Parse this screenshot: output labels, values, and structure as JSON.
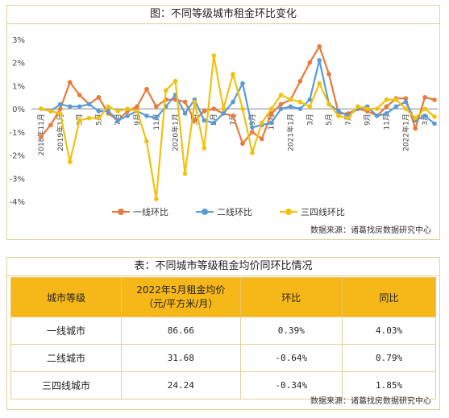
{
  "chart_data": {
    "type": "line",
    "title": "图：不同等级城市租金环比变化",
    "ylim": [
      -4,
      3
    ],
    "y_ticks": [
      "3%",
      "2%",
      "1%",
      "0%",
      "-1%",
      "-2%",
      "-3%",
      "-4%"
    ],
    "y_tick_values": [
      3,
      2,
      1,
      0,
      -1,
      -2,
      -3,
      -4
    ],
    "x_tick_labels": [
      "2018年11月",
      "2019年1月",
      "3月",
      "5月",
      "7月",
      "9月",
      "11月",
      "2020年1月",
      "3月",
      "5月",
      "7月",
      "9月",
      "11月",
      "2021年1月",
      "3月",
      "5月",
      "7月",
      "9月",
      "11月",
      "2022年1月",
      "3月",
      "5月"
    ],
    "series": [
      {
        "name": "一线环比",
        "color": "#e8793a",
        "values": [
          -1.2,
          -0.7,
          0.0,
          1.15,
          0.6,
          0.2,
          0.5,
          -0.2,
          -0.5,
          -0.1,
          0.1,
          0.85,
          0.1,
          0.4,
          0.4,
          0.3,
          -0.5,
          -0.1,
          0.0,
          -0.2,
          -0.3,
          -1.5,
          -1.0,
          -1.3,
          -0.2,
          0.2,
          0.4,
          1.2,
          2.0,
          2.7,
          1.5,
          -0.2,
          -0.2,
          0.0,
          -0.1,
          -0.3,
          0.1,
          0.45,
          0.45,
          -0.85,
          0.5,
          0.39
        ]
      },
      {
        "name": "二线环比",
        "color": "#5a9bd5",
        "values": [
          0.0,
          -0.1,
          0.2,
          0.1,
          0.1,
          0.2,
          -0.1,
          -0.1,
          -0.5,
          -0.3,
          -0.1,
          -0.3,
          -0.4,
          0.1,
          0.6,
          -0.2,
          0.4,
          -0.5,
          -0.6,
          -0.2,
          0.3,
          1.1,
          -0.8,
          -0.7,
          -0.6,
          0.0,
          0.1,
          0.0,
          0.4,
          2.1,
          0.2,
          -0.1,
          -0.3,
          0.0,
          0.1,
          -0.3,
          -0.2,
          0.1,
          0.3,
          -0.5,
          -0.3,
          -0.64
        ]
      },
      {
        "name": "三四线环比",
        "color": "#f2c10f",
        "values": [
          0.0,
          -0.1,
          -0.2,
          -2.3,
          -0.5,
          -0.4,
          -0.4,
          0.1,
          -0.1,
          0.0,
          -0.1,
          -1.4,
          -3.9,
          0.8,
          1.2,
          -2.8,
          0.3,
          -1.7,
          2.3,
          0.0,
          1.5,
          0.0,
          -1.9,
          -0.6,
          0.0,
          0.6,
          0.4,
          0.3,
          0.1,
          1.1,
          0.2,
          -0.3,
          -0.4,
          0.1,
          0.0,
          0.0,
          0.4,
          0.4,
          0.0,
          -0.4,
          0.0,
          -0.34
        ]
      }
    ],
    "legend_position": "bottom",
    "grid": false
  },
  "chart_source": "数据来源：诸葛找房数据研究中心",
  "table": {
    "title": "表：不同城市等级租金均价同环比情况",
    "headers": {
      "level": "城市等级",
      "price_line1": "2022年5月租金均价",
      "price_line2": "（元/平方米/月）",
      "mom": "环比",
      "yoy": "同比"
    },
    "rows": [
      {
        "level": "一线城市",
        "price": "86.66",
        "mom": "0.39%",
        "yoy": "4.03%"
      },
      {
        "level": "二线城市",
        "price": "31.68",
        "mom": "-0.64%",
        "yoy": "0.79%"
      },
      {
        "level": "三四线城市",
        "price": "24.24",
        "mom": "-0.34%",
        "yoy": "1.85%"
      }
    ],
    "source": "数据来源：诸葛找房数据研究中心"
  }
}
